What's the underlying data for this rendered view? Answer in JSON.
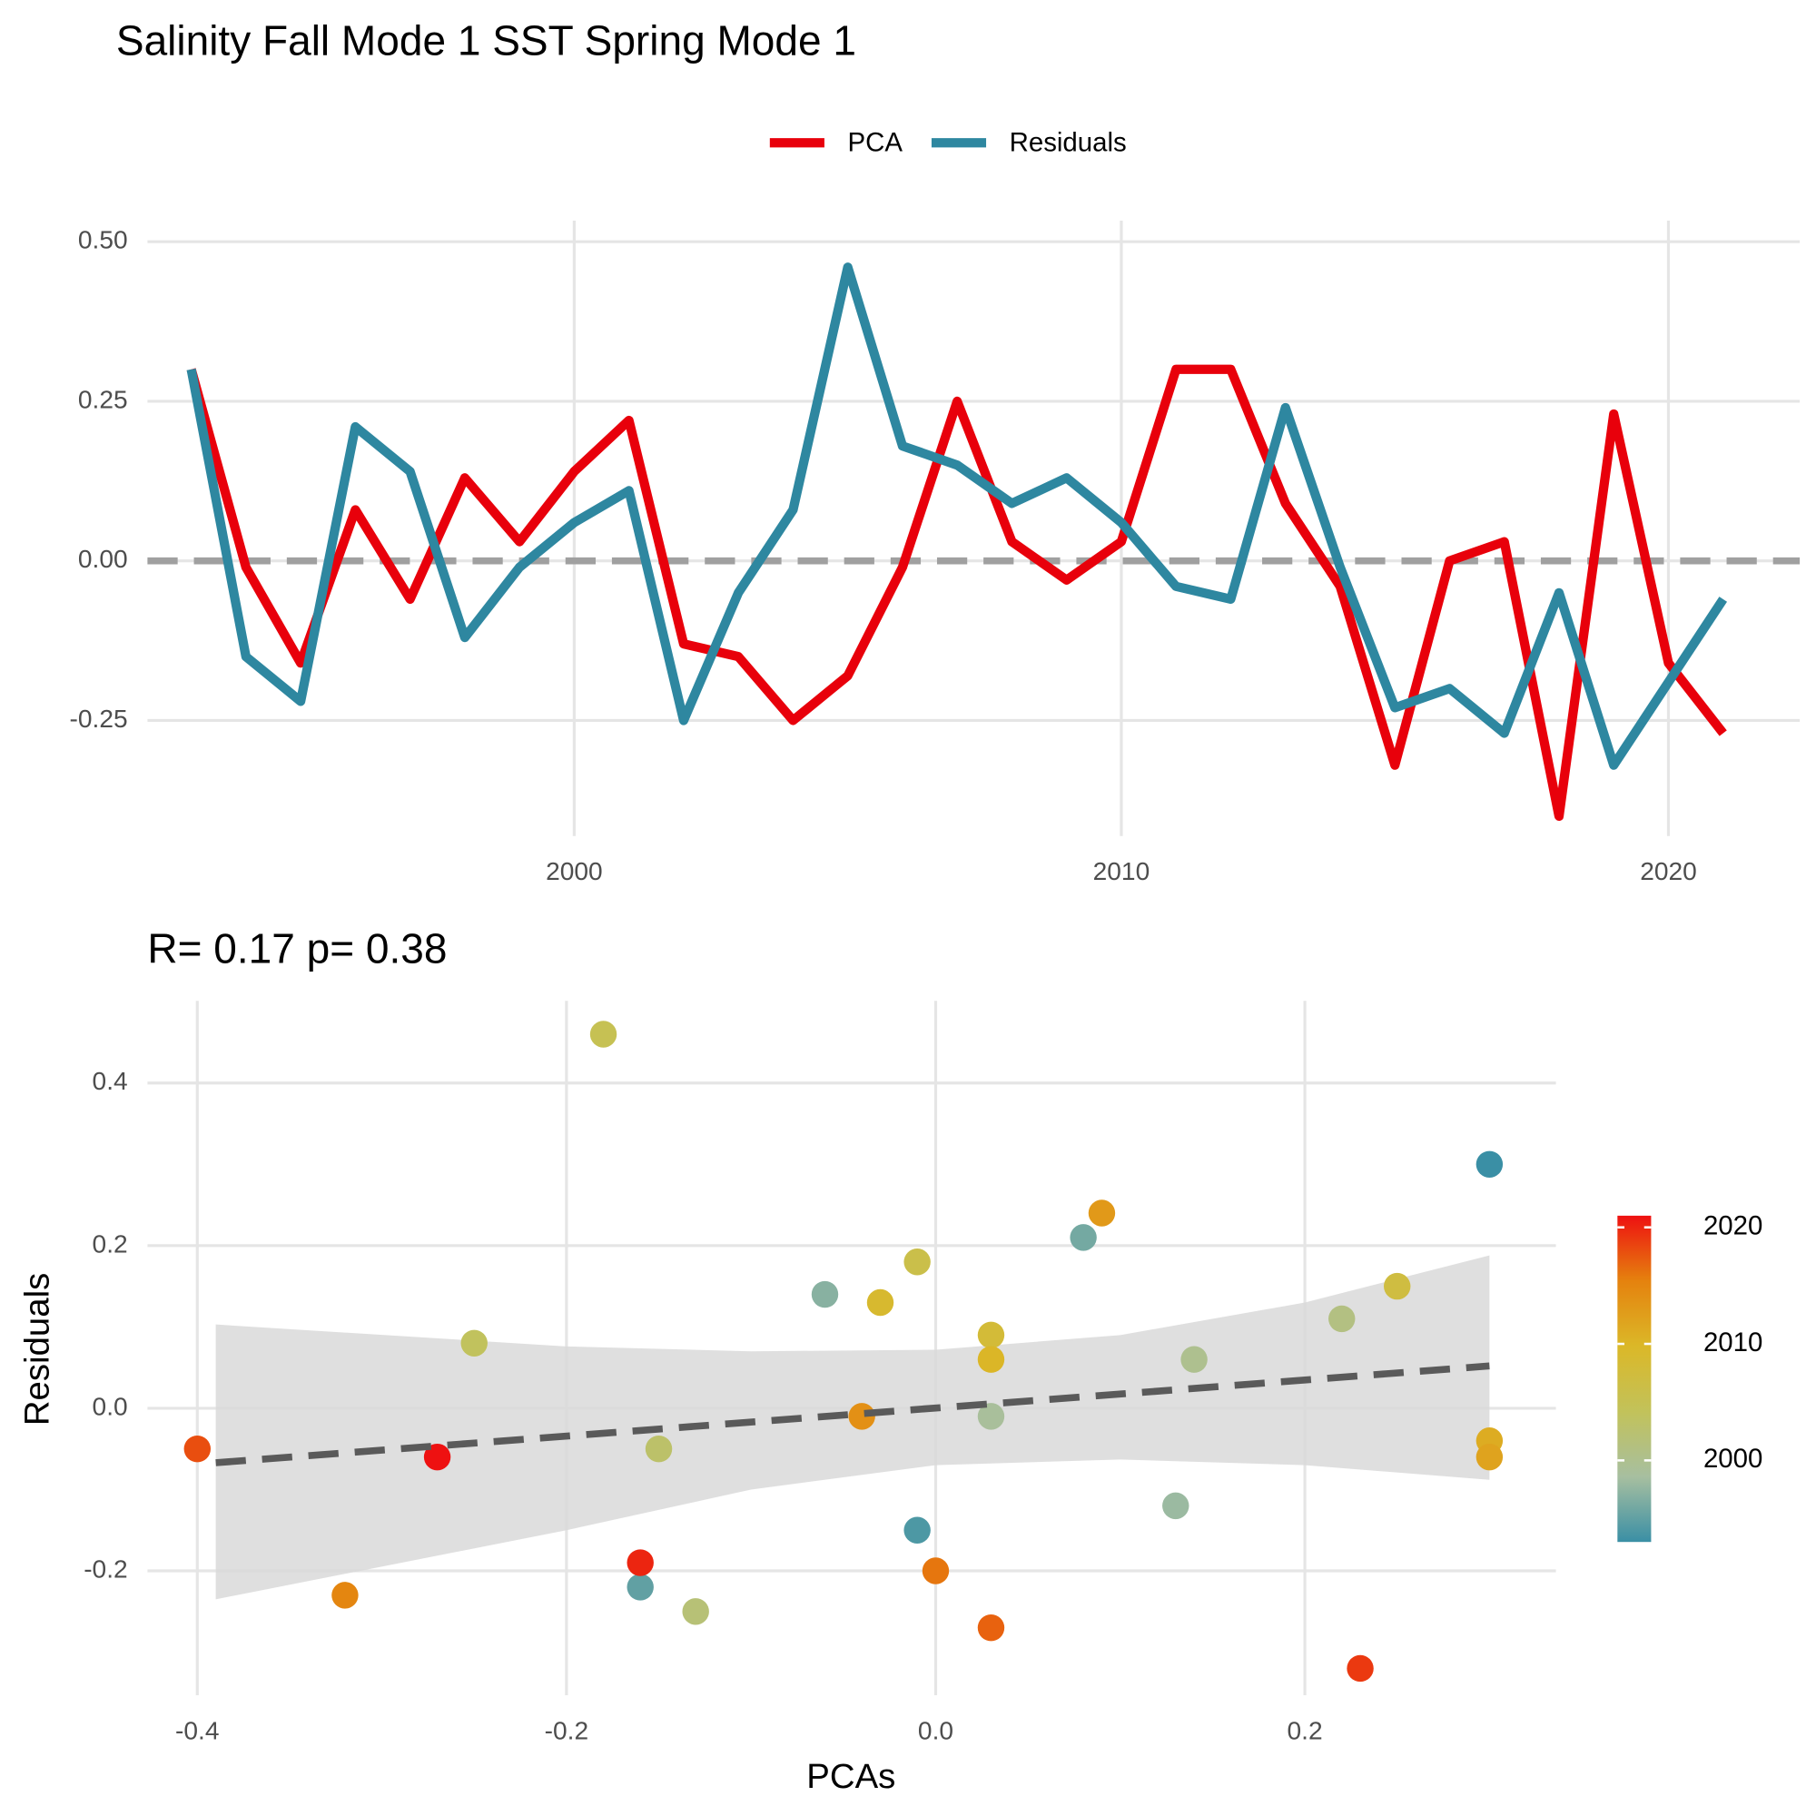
{
  "chart_data": [
    {
      "type": "line",
      "title": "Salinity Fall Mode 1 SST Spring Mode 1",
      "x": [
        1993,
        1994,
        1995,
        1996,
        1997,
        1998,
        1999,
        2000,
        2001,
        2002,
        2003,
        2004,
        2005,
        2006,
        2007,
        2008,
        2009,
        2010,
        2011,
        2012,
        2013,
        2014,
        2015,
        2016,
        2017,
        2018,
        2019,
        2020,
        2021
      ],
      "series": [
        {
          "name": "PCA",
          "color": "#e8000b",
          "values": [
            0.3,
            -0.01,
            -0.16,
            0.08,
            -0.06,
            0.13,
            0.03,
            0.14,
            0.22,
            -0.13,
            -0.15,
            -0.25,
            -0.18,
            -0.01,
            0.25,
            0.03,
            -0.03,
            0.03,
            0.3,
            0.3,
            0.09,
            -0.04,
            -0.32,
            0.0,
            0.03,
            -0.4,
            0.23,
            -0.16,
            -0.27
          ]
        },
        {
          "name": "Residuals",
          "color": "#2e87a0",
          "values": [
            0.3,
            -0.15,
            -0.22,
            0.21,
            0.14,
            -0.12,
            -0.01,
            0.06,
            0.11,
            -0.25,
            -0.05,
            0.08,
            0.46,
            0.18,
            0.15,
            0.09,
            0.13,
            0.06,
            -0.04,
            -0.06,
            0.24,
            -0.01,
            -0.23,
            -0.2,
            -0.27,
            -0.05,
            -0.32,
            -0.19,
            -0.06
          ]
        }
      ],
      "xlim": [
        1992.2,
        2022.4
      ],
      "xticks": [
        2000,
        2010,
        2020
      ],
      "ylim": [
        -0.431,
        0.533
      ],
      "yticks": [
        {
          "value": 0.5,
          "label": "0.50"
        },
        0.25,
        {
          "value": 0,
          "label": "0.00"
        },
        -0.25
      ],
      "hline": 0,
      "grid": true,
      "legend": "top"
    },
    {
      "type": "scatter",
      "subtitle": "R= 0.17  p= 0.38",
      "x_label": "PCAs",
      "y_label": "Residuals",
      "x": [
        0.3,
        -0.01,
        -0.16,
        0.08,
        -0.06,
        0.13,
        0.03,
        0.14,
        0.22,
        -0.13,
        -0.15,
        -0.25,
        -0.18,
        -0.01,
        0.25,
        0.03,
        -0.03,
        0.03,
        0.3,
        0.3,
        0.09,
        -0.04,
        -0.32,
        0.0,
        0.03,
        -0.4,
        0.23,
        -0.16,
        -0.27
      ],
      "y": [
        0.3,
        -0.15,
        -0.22,
        0.21,
        0.14,
        -0.12,
        -0.01,
        0.06,
        0.11,
        -0.25,
        -0.05,
        0.08,
        0.46,
        0.18,
        0.15,
        0.09,
        0.13,
        0.06,
        -0.04,
        -0.06,
        0.24,
        -0.01,
        -0.23,
        -0.2,
        -0.27,
        -0.05,
        -0.32,
        -0.19,
        -0.06
      ],
      "color_values": [
        1993,
        1994,
        1995,
        1996,
        1997,
        1998,
        1999,
        2000,
        2001,
        2002,
        2003,
        2004,
        2005,
        2006,
        2007,
        2008,
        2009,
        2010,
        2011,
        2012,
        2013,
        2014,
        2015,
        2016,
        2017,
        2018,
        2019,
        2020,
        2021
      ],
      "colorbar": {
        "lim": [
          1993,
          2021
        ],
        "ticks": [
          2000,
          2010,
          2020
        ],
        "colors": [
          "#3a8fa5",
          "#a7bfa0",
          "#c2c25a",
          "#dbb828",
          "#e5820e",
          "#ee1111"
        ]
      },
      "fit": {
        "x": [
          -0.39,
          0.3
        ],
        "y": [
          -0.067,
          0.052
        ],
        "color": "#5a5a5a"
      },
      "band": {
        "x": [
          -0.39,
          -0.2,
          -0.1,
          0,
          0.1,
          0.2,
          0.3
        ],
        "upper": [
          0.103,
          0.076,
          0.07,
          0.072,
          0.09,
          0.13,
          0.188
        ],
        "lower": [
          -0.235,
          -0.15,
          -0.1,
          -0.07,
          -0.063,
          -0.07,
          -0.088
        ]
      },
      "xlim": [
        -0.427,
        0.336
      ],
      "xticks": [
        -0.4,
        -0.2,
        {
          "value": 0,
          "label": "0.0"
        },
        0.2
      ],
      "ylim": [
        -0.353,
        0.501
      ],
      "yticks": [
        -0.2,
        {
          "value": 0,
          "label": "0.0"
        },
        0.2,
        0.4
      ],
      "grid": true
    }
  ]
}
